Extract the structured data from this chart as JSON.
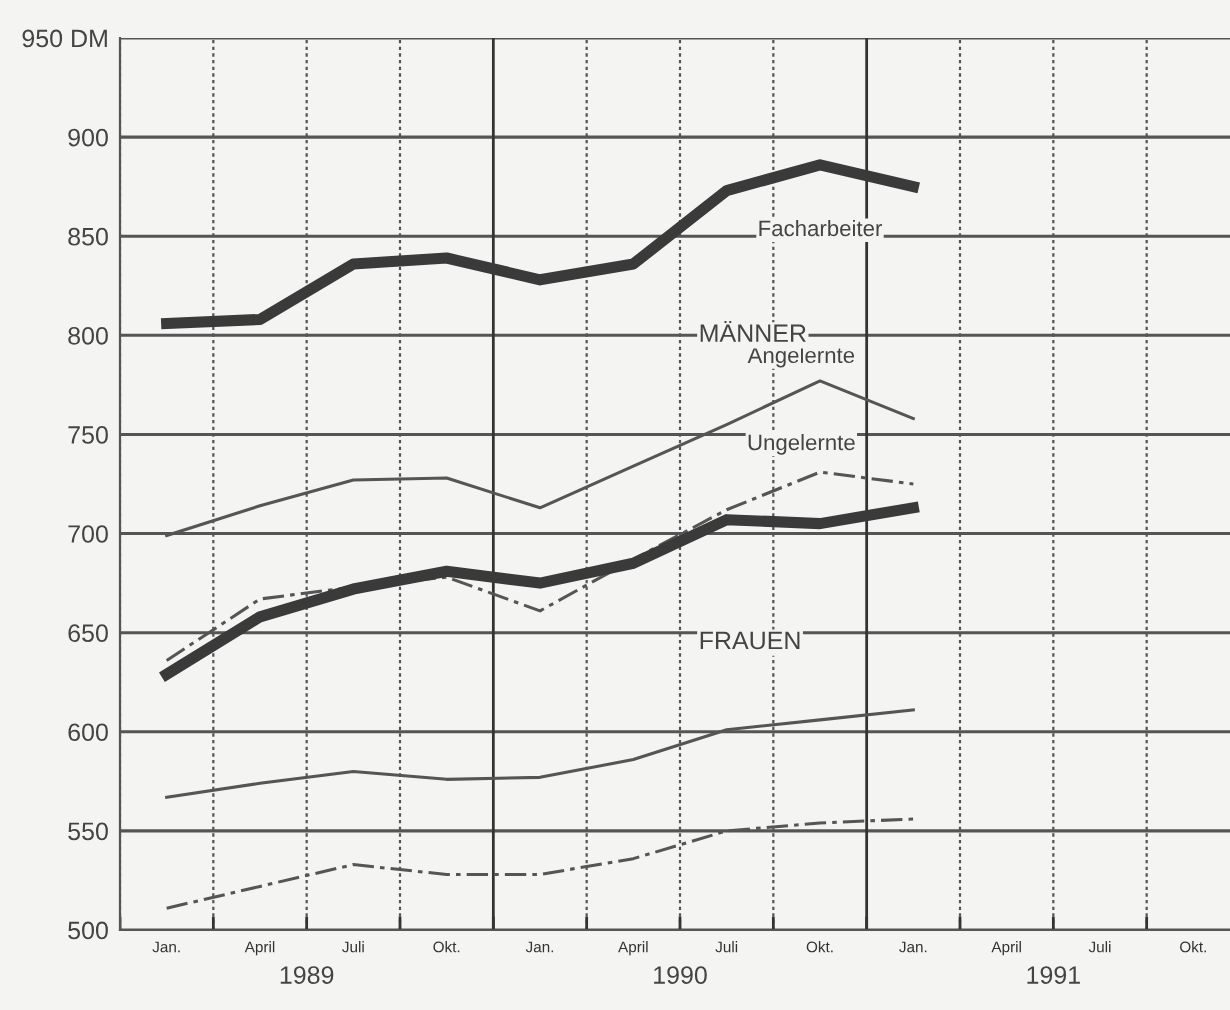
{
  "chart_data": {
    "type": "line",
    "categories": [
      "Jan.",
      "April",
      "Juli",
      "Okt.",
      "Jan.",
      "April",
      "Juli",
      "Okt.",
      "Jan.",
      "April",
      "Juli",
      "Okt."
    ],
    "ylim": [
      500,
      950
    ],
    "yticks": [
      500,
      550,
      600,
      650,
      700,
      750,
      800,
      850,
      900,
      {
        "value": 950,
        "label": "950 DM"
      }
    ],
    "grid": true,
    "legend": false,
    "series": [
      {
        "name": "Facharbeiter",
        "color": "#3a3a3a",
        "line_style": "solid",
        "values": [
          806,
          808,
          836,
          839,
          828,
          836,
          873,
          886,
          875,
          null,
          null,
          null
        ]
      },
      {
        "name": "Angelernte",
        "color": "#555555",
        "line_style": "solid",
        "values": [
          699,
          714,
          727,
          728,
          713,
          734,
          755,
          777,
          758,
          null,
          null,
          null
        ]
      },
      {
        "name": "Ungelernte",
        "color": "#555555",
        "line_style": "dashdot",
        "values": [
          636,
          667,
          673,
          678,
          661,
          687,
          712,
          731,
          725,
          null,
          null,
          null
        ]
      },
      {
        "color": "#3a3a3a",
        "line_style": "solid",
        "values": [
          629,
          658,
          672,
          681,
          675,
          685,
          707,
          705,
          713,
          null,
          null,
          null
        ]
      },
      {
        "color": "#555555",
        "line_style": "solid",
        "values": [
          567,
          574,
          580,
          576,
          577,
          586,
          601,
          606,
          611,
          null,
          null,
          null
        ]
      },
      {
        "color": "#555555",
        "line_style": "dashdot",
        "values": [
          511,
          522,
          533,
          528,
          528,
          536,
          550,
          554,
          556,
          null,
          null,
          null
        ]
      }
    ],
    "annotations": [
      "MÄNNER",
      "FRAUEN",
      "1989",
      "1990",
      "1991"
    ]
  }
}
